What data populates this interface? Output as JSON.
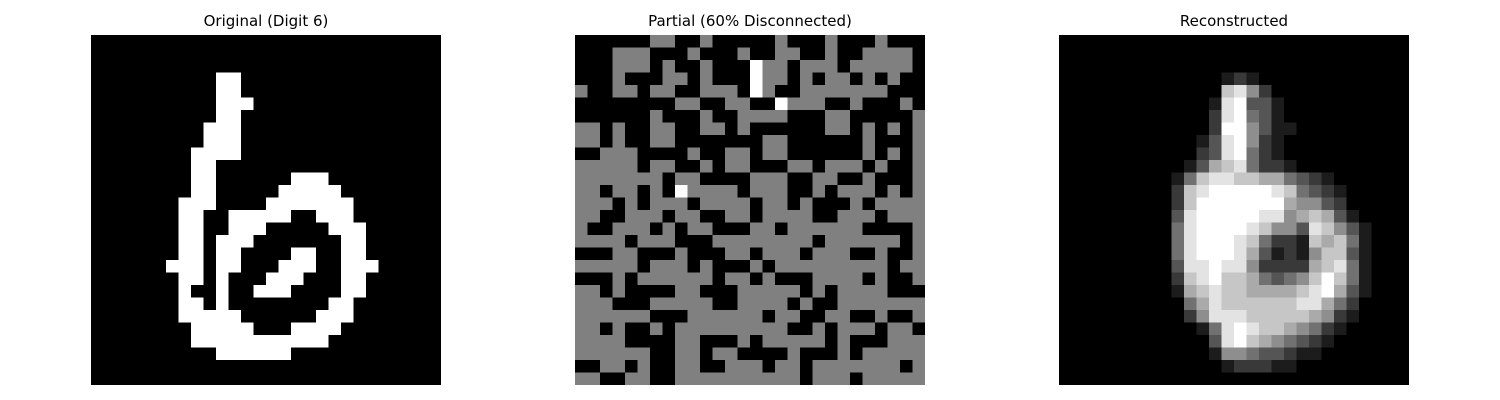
{
  "chart_data": [
    {
      "type": "heatmap",
      "title": "Original (Digit 6)",
      "axis": "off",
      "colormap": "gray",
      "value_range": [
        0,
        1
      ],
      "grid_size": [
        28,
        28
      ],
      "cells": [
        "............................",
        "............................",
        "............................",
        "..........##................",
        "..........##................",
        "..........###...............",
        "..........##................",
        ".........###................",
        ".........###................",
        "........####................",
        "........##..................",
        "........##......###.........",
        "........##.....#####........",
        ".......###....#######.......",
        ".......##..#####..###.......",
        ".......##..###.....###......",
        ".......##.###.......##......",
        ".......##.##....##..##......",
        "......###.##...###..###.....",
        ".......##.#...###...##......",
        ".......#..#..###....##......",
        ".......##.#........##.......",
        ".......#####......###.......",
        "........#####...####........",
        "........###########.........",
        "..........######............",
        "............................",
        "............................"
      ]
    },
    {
      "type": "heatmap",
      "title": "Partial (60% Disconnected)",
      "axis": "off",
      "colormap": "gray",
      "value_range": [
        -1,
        1
      ],
      "legend": "# = 1, . = 0, ~ = disconnected",
      "grid_size": [
        28,
        28
      ],
      "cells": [
        "......~~..~.....~...~...~...",
        "...~~~...~...~..~~..~..~~~~.",
        "...~~~.~..~...#~~.~~~.~~~~~.",
        "...~...~~.~...#~~.~.~~.~.~..",
        "~..~~.~~..~~~.#~..~~~~~~~...",
        "........~~..~~..#~~~..~...~.",
        "......~...~..~~~~...~~.....~",
        "~~.~..~~..~~.~......~~.~.~.~",
        "~~.~..~~.......~~......~...~",
        "..~~~....~..~~.~~......~.~.~",
        "~~~~~.~~..~.~~...~~.~~~.~..~",
        "~~~~~~~.~~....~~~..~~..~...~",
        "~~.~~.~.#~~~~.~~~..~.~~~.~.~",
        "~~~.~.~~~.~~~~.~~.~...~.~~~~",
        "~~..~~~.~~..~~.~~~~..~~~.~~~",
        "~..~~~.~.~~...~~.~~~~~~....~",
        "~~~~.~~~...~~~~~~~~.~~~~~~.~",
        "...~~...~...~~.~~~.~~~..~..~",
        "~~~~~.~~~.~...~.~~~~~~~~~.~~",
        "...~.~~~~~~.~~.~...~~~~.~..~",
        "~~.~....~~...~~~~~.~.~~~~...",
        "~~~...~~~~~..~~~~.~..~~~~~~~",
        "~~~~~~...~~~~~~.~~..~~..~..~",
        "~~.~..~.~~~~~~~~~..~.~~~.~~.",
        "~~~~....~~...~.~~~~~.~...~~~",
        "~~~~~~..~~.~~....~...~.~~~~~",
        "..~~.~..~~..~~~.~~.~~~~~~~.~",
        "~~..~~..~~~~~~~~~~.~~~.~~~~~"
      ]
    },
    {
      "type": "heatmap",
      "title": "Reconstructed",
      "axis": "off",
      "colormap": "gray",
      "value_range": [
        0,
        9
      ],
      "legend": "digits 0-9 = intensity from 0 to 1",
      "grid_size": [
        28,
        28
      ],
      "cells": [
        "0000000000000000000000000000",
        "0000000000000000000000000000",
        "0000000000000000000000000000",
        "0000000000000121000000000000",
        "0000000000000785200000000000",
        "0000000000001893310000000000",
        "0000000000002894310000000000",
        "0000000000002995311000000000",
        "0000000000013895210000000000",
        "0000000000023894210000000000",
        "0000000000136784221000000000",
        "0000000001478877664321000000",
        "0000000002789999987432100000",
        "0000000002799999996553200000",
        "0000000003899999885676310000",
        "0000000004899998755387531000",
        "0000000004899987422176741000",
        "0000000004899986312157731000",
        "0000000003889885222267841000",
        "0000000002789776434579741000",
        "0000000001678776666789631000",
        "0000000000468777777886420000",
        "0000000000258887777765210000",
        "0000000000014898776542100000",
        "0000000000003897654321000000",
        "0000000000001554332110000000",
        "0000000000000122211000000000",
        "0000000000000000000000000000"
      ]
    }
  ]
}
